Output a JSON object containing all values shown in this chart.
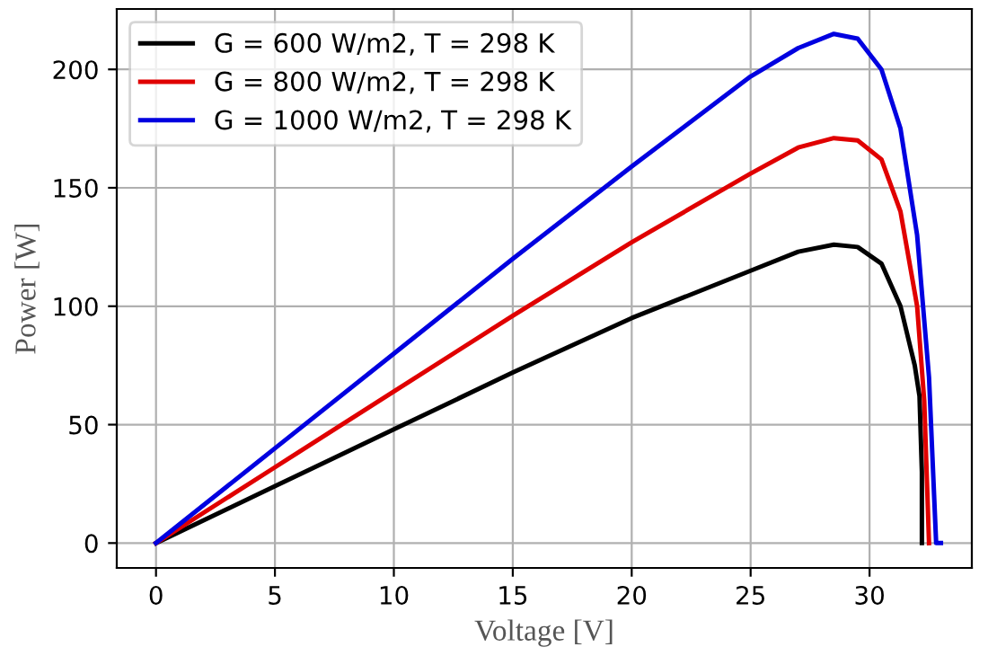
{
  "chart_data": {
    "type": "line",
    "xlabel": "Voltage [V]",
    "ylabel": "Power [W]",
    "xlim": [
      -1.65,
      34.3
    ],
    "ylim": [
      -10.5,
      225.5
    ],
    "xticks": [
      0,
      5,
      10,
      15,
      20,
      25,
      30
    ],
    "yticks": [
      0,
      50,
      100,
      150,
      200
    ],
    "grid": true,
    "legend": "top left",
    "line_style": "solid",
    "marker": "none",
    "series": [
      {
        "name": "G = 600 W/m2, T = 298 K",
        "color": "#000000",
        "x": [
          0,
          5,
          10,
          15,
          20,
          25,
          27,
          28.5,
          29.5,
          30.5,
          31.3,
          31.9,
          32.1,
          32.2,
          32.2
        ],
        "values": [
          0,
          24,
          48,
          72,
          95,
          115,
          123,
          126,
          125,
          118,
          100,
          75,
          62,
          30,
          0
        ]
      },
      {
        "name": "G = 800 W/m2, T = 298 K",
        "color": "#e00000",
        "x": [
          0,
          5,
          10,
          15,
          20,
          25,
          27,
          28.5,
          29.5,
          30.5,
          31.3,
          32,
          32.3,
          32.5
        ],
        "values": [
          0,
          32,
          64,
          96,
          127,
          156,
          167,
          171,
          170,
          162,
          140,
          100,
          60,
          0
        ]
      },
      {
        "name": "G = 1000 W/m2, T = 298 K",
        "color": "#0000e0",
        "x": [
          0,
          5,
          10,
          15,
          20,
          25,
          27,
          28.5,
          29.5,
          30.5,
          31.3,
          32,
          32.5,
          32.8,
          33.0
        ],
        "values": [
          0,
          40,
          80,
          120,
          159,
          197,
          209,
          215,
          213,
          200,
          175,
          130,
          70,
          0,
          0
        ]
      }
    ]
  }
}
